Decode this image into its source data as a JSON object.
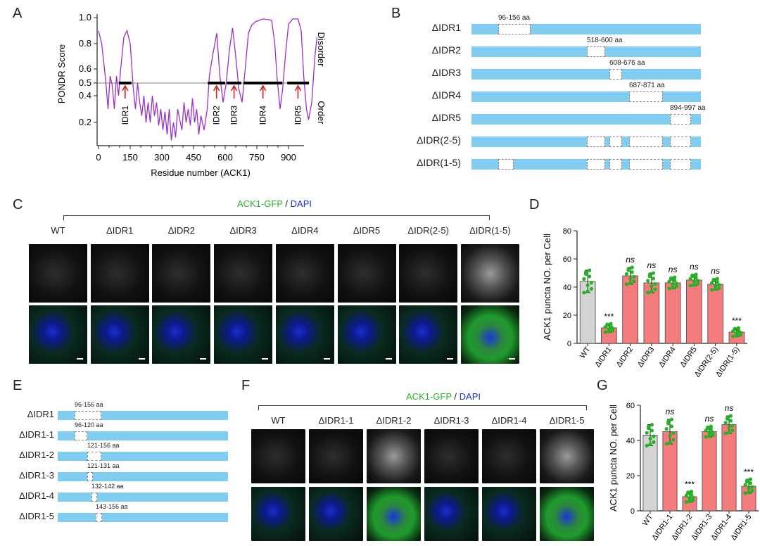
{
  "panel_labels": {
    "A": "A",
    "B": "B",
    "C": "C",
    "D": "D",
    "E": "E",
    "F": "F",
    "G": "G"
  },
  "panel_a": {
    "ylabel": "PONDR Score",
    "xlabel": "Residue number (ACK1)",
    "yticks": [
      "1.0",
      "0.8",
      "0.6",
      "0.5",
      "0.4",
      "0.2"
    ],
    "xticks": [
      "0",
      "150",
      "300",
      "450",
      "600",
      "750",
      "900"
    ],
    "right_top": "Disorder",
    "right_bottom": "Order",
    "idr_labels": [
      "IDR1",
      "IDR2",
      "IDR3",
      "IDR4",
      "IDR5"
    ],
    "line_color": "#9b30c8"
  },
  "panel_b": {
    "constructs": [
      {
        "name": "ΔIDR1",
        "note": "96-156 aa"
      },
      {
        "name": "ΔIDR2",
        "note": "518-600 aa"
      },
      {
        "name": "ΔIDR3",
        "note": "608-676 aa"
      },
      {
        "name": "ΔIDR4",
        "note": "687-871 aa"
      },
      {
        "name": "ΔIDR5",
        "note": "894-997 aa"
      },
      {
        "name": "ΔIDR(2-5)",
        "note": ""
      },
      {
        "name": "ΔIDR(1-5)",
        "note": ""
      }
    ],
    "bar_color": "#7fcdf0"
  },
  "panel_c": {
    "title_green": "ACK1-GFP",
    "title_sep": " / ",
    "title_blue": "DAPI",
    "columns": [
      "WT",
      "ΔIDR1",
      "ΔIDR2",
      "ΔIDR3",
      "ΔIDR4",
      "ΔIDR5",
      "ΔIDR(2-5)",
      "ΔIDR(1-5)"
    ]
  },
  "panel_f": {
    "title_green": "ACK1-GFP",
    "title_sep": " / ",
    "title_blue": "DAPI",
    "columns": [
      "WT",
      "ΔIDR1-1",
      "ΔIDR1-2",
      "ΔIDR1-3",
      "ΔIDR1-4",
      "ΔIDR1-5"
    ]
  },
  "panel_e": {
    "constructs": [
      {
        "name": "ΔIDR1",
        "note": "96-156 aa"
      },
      {
        "name": "ΔIDR1-1",
        "note": "96-120 aa"
      },
      {
        "name": "ΔIDR1-2",
        "note": "121-156 aa"
      },
      {
        "name": "ΔIDR1-3",
        "note": "121-131 aa"
      },
      {
        "name": "ΔIDR1-4",
        "note": "132-142 aa"
      },
      {
        "name": "ΔIDR1-5",
        "note": "143-156 aa"
      }
    ]
  },
  "chart_data": [
    {
      "type": "bar",
      "panel": "D",
      "title": "",
      "ylabel": "ACK1 puncta NO. per Cell",
      "ylim": [
        0,
        80
      ],
      "yticks": [
        0,
        20,
        40,
        60,
        80
      ],
      "categories": [
        "WT",
        "ΔIDR1",
        "ΔIDR2",
        "ΔIDR3",
        "ΔIDR4",
        "ΔIDR5",
        "ΔIDR(2-5)",
        "ΔIDR(1-5)"
      ],
      "values": [
        44,
        11,
        48,
        43,
        43,
        45,
        42,
        8
      ],
      "errors": [
        8,
        3,
        6,
        7,
        4,
        4,
        4,
        3
      ],
      "significance": [
        "",
        "***",
        "ns",
        "ns",
        "ns",
        "ns",
        "ns",
        "***"
      ],
      "bar_colors": [
        "#d4d4d4",
        "#f47c7c",
        "#f47c7c",
        "#f47c7c",
        "#f47c7c",
        "#f47c7c",
        "#f47c7c",
        "#f47c7c"
      ]
    },
    {
      "type": "bar",
      "panel": "G",
      "title": "",
      "ylabel": "ACK1 puncta NO. per Cell",
      "ylim": [
        0,
        60
      ],
      "yticks": [
        0,
        20,
        40,
        60
      ],
      "categories": [
        "WT",
        "ΔIDR1-1",
        "ΔIDR1-2",
        "ΔIDR1-3",
        "ΔIDR1-4",
        "ΔIDR1-5"
      ],
      "values": [
        43,
        45,
        8,
        45,
        49,
        14
      ],
      "errors": [
        6,
        7,
        3,
        3,
        5,
        4
      ],
      "significance": [
        "",
        "ns",
        "***",
        "ns",
        "ns",
        "***"
      ],
      "bar_colors": [
        "#d4d4d4",
        "#f47c7c",
        "#f47c7c",
        "#f47c7c",
        "#f47c7c",
        "#f47c7c"
      ]
    }
  ]
}
